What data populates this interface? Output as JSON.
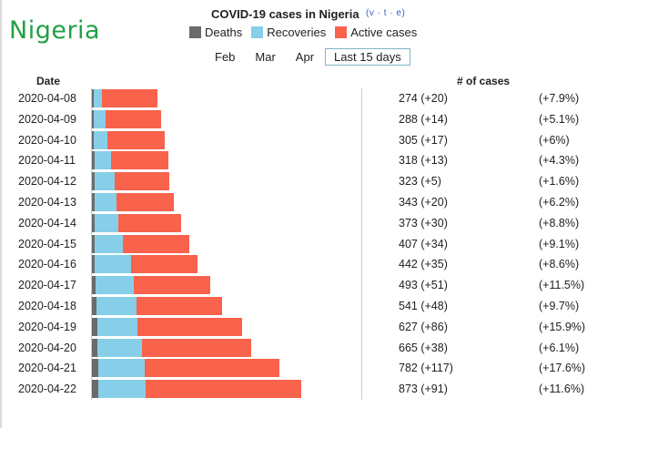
{
  "header": {
    "region_label": "Nigeria",
    "title": "COVID-19 cases in Nigeria",
    "vte": "(v · t · e)"
  },
  "legend": [
    {
      "label": "Deaths",
      "color": "#6b6b6b"
    },
    {
      "label": "Recoveries",
      "color": "#87cfe9"
    },
    {
      "label": "Active cases",
      "color": "#f9624b"
    }
  ],
  "period_tabs": [
    "Feb",
    "Mar",
    "Apr",
    "Last 15 days"
  ],
  "selected_tab": "Last 15 days",
  "columns": {
    "date": "Date",
    "cases": "# of cases"
  },
  "chart_data": {
    "type": "bar",
    "orientation": "horizontal",
    "stacked": true,
    "title": "COVID-19 cases in Nigeria",
    "categories": [
      "2020-04-08",
      "2020-04-09",
      "2020-04-10",
      "2020-04-11",
      "2020-04-12",
      "2020-04-13",
      "2020-04-14",
      "2020-04-15",
      "2020-04-16",
      "2020-04-17",
      "2020-04-18",
      "2020-04-19",
      "2020-04-20",
      "2020-04-21",
      "2020-04-22"
    ],
    "series": [
      {
        "name": "Deaths",
        "color": "#6b6b6b",
        "values": [
          6,
          7,
          7,
          10,
          10,
          10,
          11,
          12,
          12,
          17,
          19,
          21,
          22,
          25,
          28
        ]
      },
      {
        "name": "Recoveries",
        "color": "#87cfe9",
        "values": [
          35,
          51,
          58,
          70,
          85,
          91,
          99,
          117,
          152,
          159,
          166,
          170,
          188,
          197,
          197
        ]
      },
      {
        "name": "Active cases",
        "color": "#f9624b",
        "values": [
          233,
          230,
          240,
          238,
          228,
          242,
          263,
          278,
          278,
          317,
          356,
          436,
          455,
          560,
          648
        ]
      }
    ],
    "labels": [
      {
        "cases": "274 (+20)",
        "pct": "(+7.9%)"
      },
      {
        "cases": "288 (+14)",
        "pct": "(+5.1%)"
      },
      {
        "cases": "305 (+17)",
        "pct": "(+6%)"
      },
      {
        "cases": "318 (+13)",
        "pct": "(+4.3%)"
      },
      {
        "cases": "323 (+5)",
        "pct": "(+1.6%)"
      },
      {
        "cases": "343 (+20)",
        "pct": "(+6.2%)"
      },
      {
        "cases": "373 (+30)",
        "pct": "(+8.8%)"
      },
      {
        "cases": "407 (+34)",
        "pct": "(+9.1%)"
      },
      {
        "cases": "442 (+35)",
        "pct": "(+8.6%)"
      },
      {
        "cases": "493 (+51)",
        "pct": "(+11.5%)"
      },
      {
        "cases": "541 (+48)",
        "pct": "(+9.7%)"
      },
      {
        "cases": "627 (+86)",
        "pct": "(+15.9%)"
      },
      {
        "cases": "665 (+38)",
        "pct": "(+6.1%)"
      },
      {
        "cases": "782 (+117)",
        "pct": "(+17.6%)"
      },
      {
        "cases": "873 (+91)",
        "pct": "(+11.6%)"
      }
    ]
  }
}
